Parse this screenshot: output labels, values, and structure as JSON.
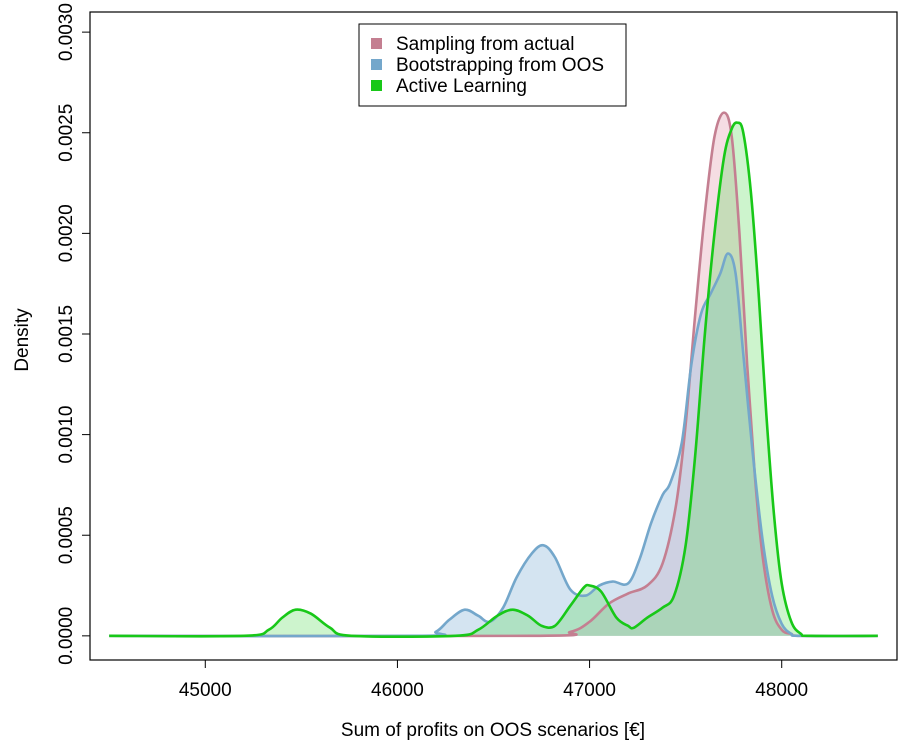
{
  "chart_data": {
    "type": "area",
    "title": "",
    "xlabel": "Sum of profits on OOS scenarios [€]",
    "ylabel": "Density",
    "xlim": [
      44400,
      48600
    ],
    "ylim": [
      -0.00012,
      0.0031
    ],
    "x_ticks": [
      45000,
      46000,
      47000,
      48000
    ],
    "x_tick_labels": [
      "45000",
      "46000",
      "47000",
      "48000"
    ],
    "y_ticks": [
      0.0,
      0.0005,
      0.001,
      0.0015,
      0.002,
      0.0025,
      0.003
    ],
    "y_tick_labels": [
      "0.0000",
      "0.0005",
      "0.0010",
      "0.0015",
      "0.0020",
      "0.0025",
      "0.0030"
    ],
    "grid": false,
    "legend_position": "top-center",
    "series": [
      {
        "name": "Sampling from actual",
        "color": "#c47f91",
        "fill": "rgba(230,170,185,0.40)",
        "x": [
          44500,
          46700,
          46900,
          47000,
          47100,
          47200,
          47300,
          47380,
          47450,
          47500,
          47550,
          47600,
          47650,
          47700,
          47740,
          47780,
          47820,
          47860,
          47900,
          47950,
          48000,
          48050,
          48100,
          48500
        ],
        "y": [
          0,
          0,
          2e-05,
          7e-05,
          0.00016,
          0.00021,
          0.00025,
          0.00036,
          0.00065,
          0.00105,
          0.0016,
          0.0021,
          0.00248,
          0.0026,
          0.00248,
          0.002,
          0.00135,
          0.0008,
          0.0004,
          0.00013,
          3e-05,
          1e-05,
          0,
          0
        ]
      },
      {
        "name": "Bootstrapping from OOS",
        "color": "#74a7cb",
        "fill": "rgba(160,195,225,0.45)",
        "x": [
          44500,
          46100,
          46200,
          46270,
          46350,
          46420,
          46480,
          46550,
          46620,
          46700,
          46760,
          46820,
          46900,
          46980,
          47050,
          47120,
          47200,
          47260,
          47320,
          47380,
          47420,
          47480,
          47530,
          47580,
          47630,
          47680,
          47720,
          47760,
          47800,
          47850,
          47900,
          47950,
          48000,
          48050,
          48100,
          48500
        ],
        "y": [
          0,
          0,
          2e-05,
          8e-05,
          0.00013,
          0.0001,
          7e-05,
          0.00014,
          0.00029,
          0.00041,
          0.00045,
          0.00039,
          0.00023,
          0.0002,
          0.00025,
          0.00027,
          0.00026,
          0.00038,
          0.00056,
          0.0007,
          0.00076,
          0.00096,
          0.00135,
          0.0016,
          0.0017,
          0.0018,
          0.0019,
          0.0018,
          0.0014,
          0.0009,
          0.00048,
          0.0002,
          6e-05,
          1e-05,
          0,
          0
        ]
      },
      {
        "name": "Active Learning",
        "color": "#18c818",
        "fill": "rgba(90,220,90,0.30)",
        "x": [
          44500,
          45200,
          45330,
          45400,
          45470,
          45550,
          45650,
          45760,
          46300,
          46420,
          46520,
          46600,
          46680,
          46750,
          46820,
          46900,
          46970,
          47000,
          47060,
          47140,
          47200,
          47230,
          47300,
          47380,
          47440,
          47500,
          47550,
          47600,
          47650,
          47700,
          47740,
          47770,
          47800,
          47840,
          47880,
          47920,
          47960,
          48000,
          48050,
          48100,
          48150,
          48500
        ],
        "y": [
          0,
          0,
          3e-05,
          9e-05,
          0.00013,
          0.00011,
          4e-05,
          0,
          0,
          3e-05,
          0.0001,
          0.00013,
          0.0001,
          5e-05,
          5e-05,
          0.00015,
          0.00024,
          0.00025,
          0.00022,
          9e-05,
          5e-05,
          4e-05,
          9e-05,
          0.00014,
          0.0002,
          0.00045,
          0.0009,
          0.0015,
          0.002,
          0.00238,
          0.00252,
          0.00255,
          0.0025,
          0.0022,
          0.0017,
          0.0011,
          0.0006,
          0.00026,
          7e-05,
          1e-05,
          0,
          0
        ]
      }
    ]
  }
}
